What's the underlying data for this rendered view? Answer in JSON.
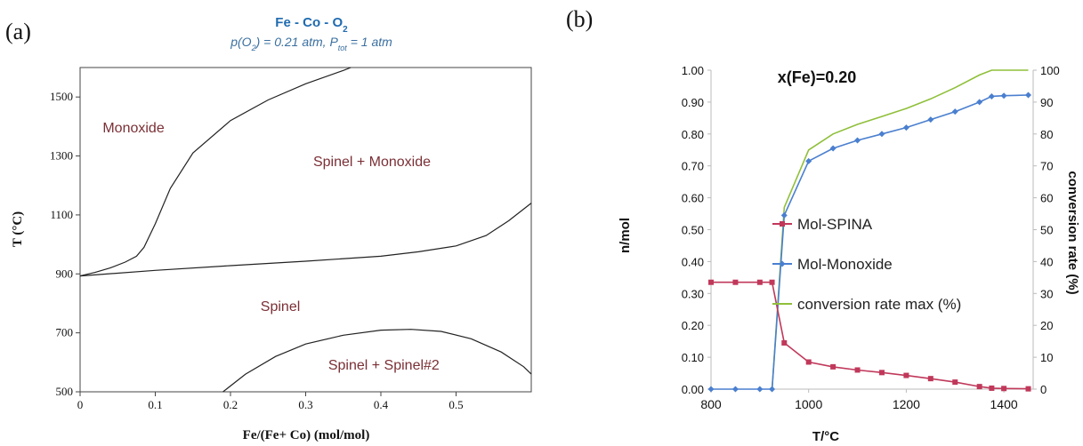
{
  "panel_labels": {
    "a": "(a)",
    "b": "(b)"
  },
  "chart_data": [
    {
      "type": "line",
      "title": "Fe - Co - O",
      "title_subscript": "2",
      "subtitle": {
        "p_prefix": "p(O",
        "o2_sub": "2",
        "p_mid": ") = 0.21 atm, P",
        "tot_sub": "tot",
        "p_end": " = 1 atm"
      },
      "xlabel": "Fe/(Fe+ Co) (mol/mol)",
      "ylabel": "T (°C)",
      "xlim": [
        0,
        0.6
      ],
      "ylim": [
        500,
        1600
      ],
      "x_ticks": [
        0,
        0.1,
        0.2,
        0.3,
        0.4,
        0.5
      ],
      "x_tick_labels": [
        "0",
        "0.1",
        "0.2",
        "0.3",
        "0.4",
        "0.5"
      ],
      "y_ticks": [
        500,
        700,
        900,
        1100,
        1300,
        1500
      ],
      "y_tick_labels": [
        "500",
        "700",
        "900",
        "1100",
        "1300",
        "1500"
      ],
      "grid": false,
      "curves": [
        {
          "name": "",
          "x": [
            0,
            0.02,
            0.04,
            0.06,
            0.075,
            0.085,
            0.1,
            0.12,
            0.15,
            0.2,
            0.25,
            0.3,
            0.35,
            0.36
          ],
          "y": [
            893,
            905,
            920,
            940,
            960,
            990,
            1070,
            1190,
            1310,
            1420,
            1490,
            1545,
            1590,
            1600
          ]
        },
        {
          "name": "",
          "x": [
            0,
            0.1,
            0.2,
            0.3,
            0.4,
            0.45,
            0.5,
            0.54,
            0.57,
            0.6
          ],
          "y": [
            893,
            912,
            928,
            943,
            960,
            975,
            995,
            1030,
            1080,
            1140
          ]
        },
        {
          "name": "",
          "x": [
            0.19,
            0.22,
            0.26,
            0.3,
            0.35,
            0.4,
            0.44,
            0.48,
            0.52,
            0.56,
            0.59,
            0.6
          ],
          "y": [
            500,
            560,
            620,
            662,
            692,
            709,
            712,
            705,
            680,
            635,
            585,
            560
          ]
        }
      ],
      "region_labels": [
        {
          "text": "Monoxide",
          "x": 0.03,
          "y": 1380
        },
        {
          "text": "Spinel + Monoxide",
          "x": 0.31,
          "y": 1265
        },
        {
          "text": "Spinel",
          "x": 0.24,
          "y": 775
        },
        {
          "text": "Spinel + Spinel#2",
          "x": 0.33,
          "y": 575
        }
      ],
      "colors": {
        "title": "#1f6bb0",
        "subtitle": "#3a6fa0",
        "region": "#7a2f35",
        "curve": "#222222"
      }
    },
    {
      "type": "line",
      "title": "x(Fe)=0.20",
      "xlabel": "T/°C",
      "ylabel": "n/mol",
      "y2label": "conversion rate (%)",
      "xlim": [
        800,
        1460
      ],
      "ylim": [
        0,
        1
      ],
      "y2lim": [
        0,
        100
      ],
      "x_ticks": [
        800,
        1000,
        1200,
        1400
      ],
      "x_tick_labels": [
        "800",
        "1000",
        "1200",
        "1400"
      ],
      "y_ticks": [
        0,
        0.1,
        0.2,
        0.3,
        0.4,
        0.5,
        0.6,
        0.7,
        0.8,
        0.9,
        1.0
      ],
      "y_tick_labels": [
        "0.00",
        "0.10",
        "0.20",
        "0.30",
        "0.40",
        "0.50",
        "0.60",
        "0.70",
        "0.80",
        "0.90",
        "1.00"
      ],
      "y2_ticks": [
        0,
        10,
        20,
        30,
        40,
        50,
        60,
        70,
        80,
        90,
        100
      ],
      "y2_tick_labels": [
        "0",
        "10",
        "20",
        "30",
        "40",
        "50",
        "60",
        "70",
        "80",
        "90",
        "100"
      ],
      "grid": false,
      "legend_position": "center-right",
      "series": [
        {
          "name": "Mol-SPINA",
          "axis": "left",
          "color": "#c0385a",
          "marker": "square",
          "x": [
            800,
            850,
            900,
            925,
            950,
            1000,
            1050,
            1100,
            1150,
            1200,
            1250,
            1300,
            1350,
            1375,
            1400,
            1450
          ],
          "y": [
            0.335,
            0.335,
            0.335,
            0.335,
            0.145,
            0.085,
            0.07,
            0.06,
            0.052,
            0.043,
            0.033,
            0.022,
            0.008,
            0.003,
            0.002,
            0.001
          ]
        },
        {
          "name": "Mol-Monoxide",
          "axis": "left",
          "color": "#4a7fcf",
          "marker": "diamond",
          "x": [
            800,
            850,
            900,
            925,
            950,
            1000,
            1050,
            1100,
            1150,
            1200,
            1250,
            1300,
            1350,
            1375,
            1400,
            1450
          ],
          "y": [
            0,
            0,
            0,
            0,
            0.545,
            0.715,
            0.755,
            0.78,
            0.8,
            0.82,
            0.845,
            0.87,
            0.9,
            0.918,
            0.92,
            0.922
          ]
        },
        {
          "name": "conversion rate max (%)",
          "axis": "right",
          "color": "#8fbf3a",
          "marker": "none",
          "x": [
            925,
            950,
            1000,
            1050,
            1100,
            1150,
            1200,
            1250,
            1300,
            1350,
            1375,
            1400,
            1450
          ],
          "y": [
            0,
            57,
            75,
            80,
            83,
            85.5,
            88,
            91,
            94.5,
            98.5,
            100,
            100,
            100
          ]
        }
      ]
    }
  ]
}
